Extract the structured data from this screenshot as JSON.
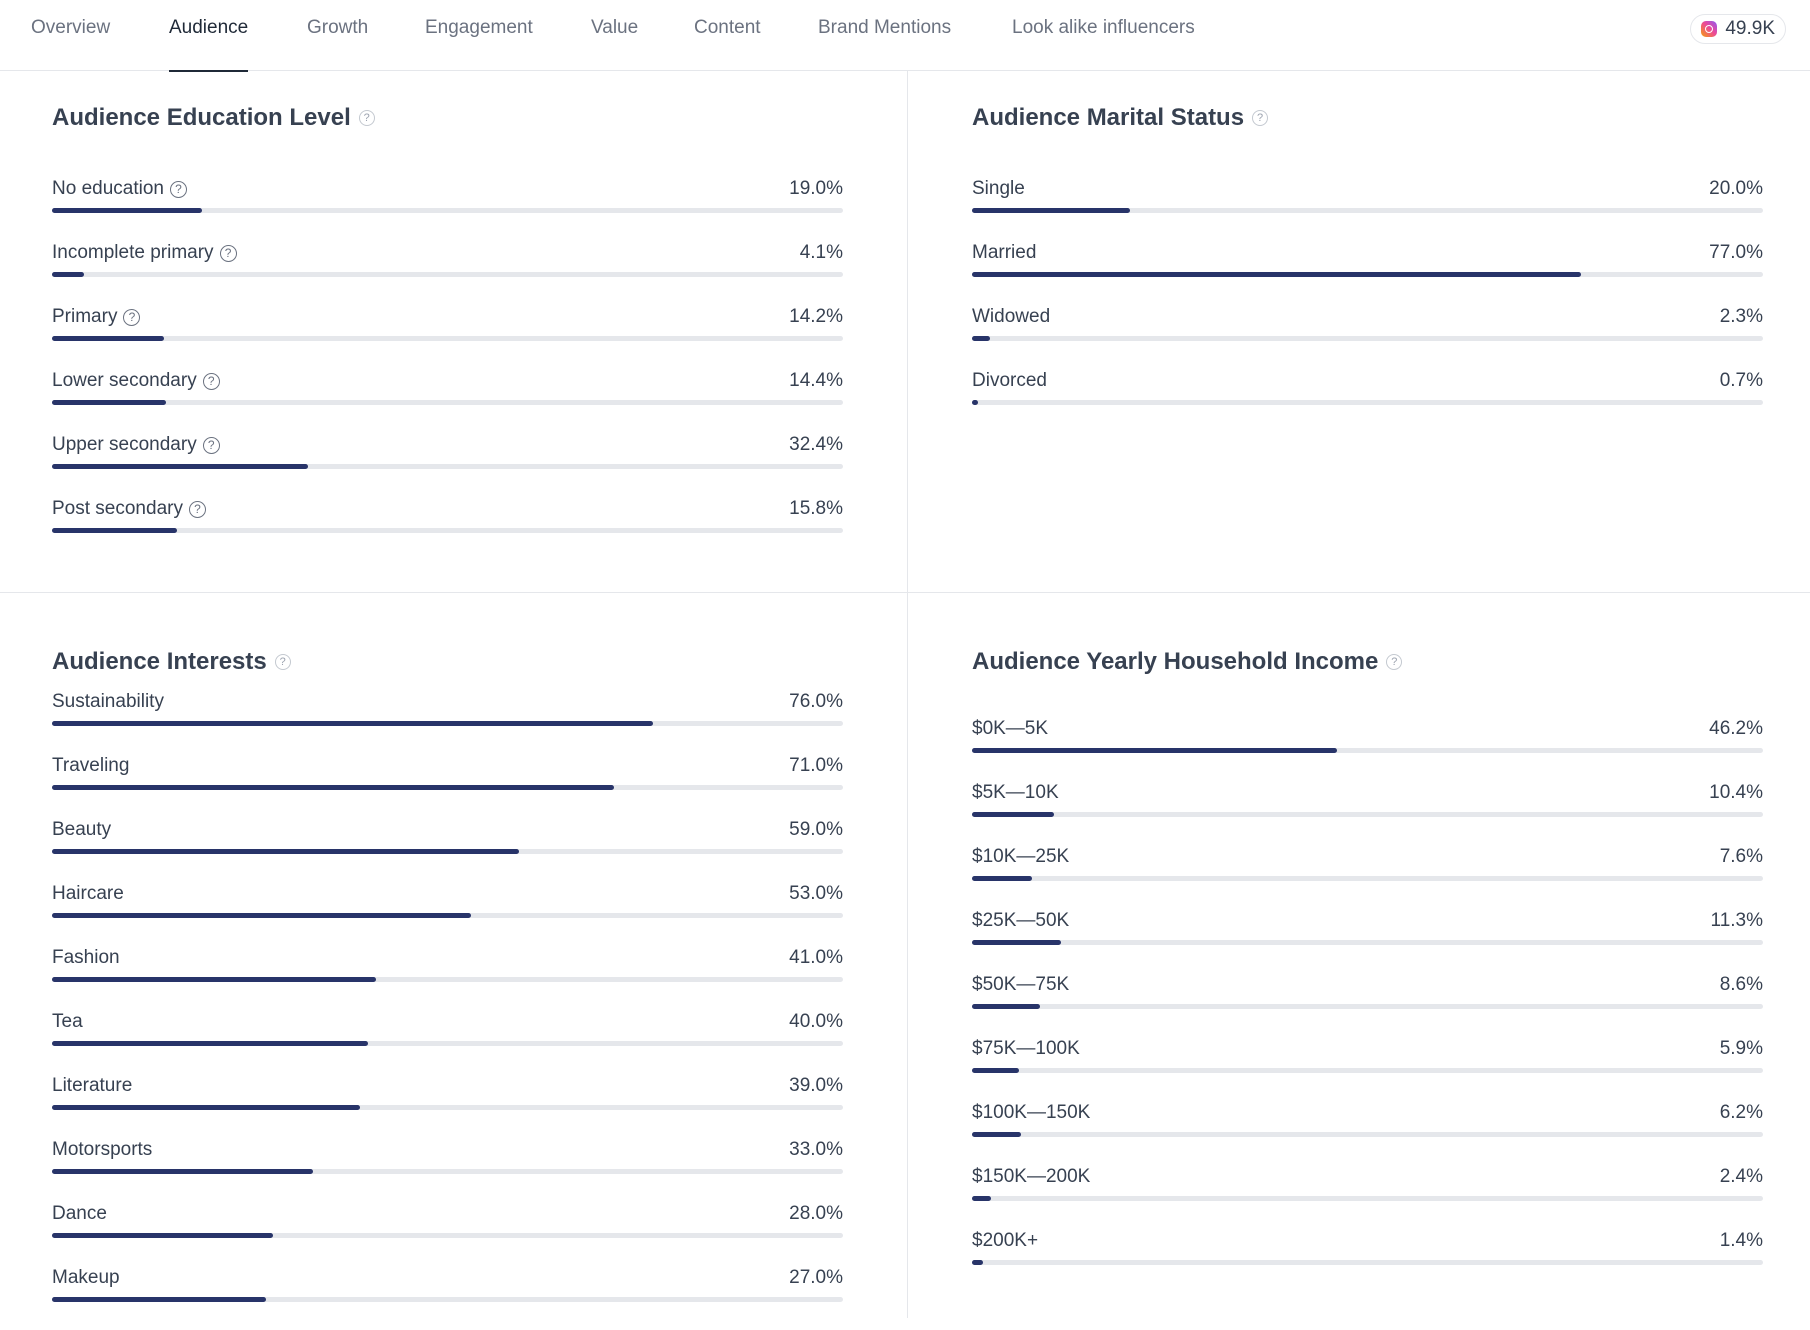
{
  "tabs": [
    {
      "label": "Overview",
      "active": false
    },
    {
      "label": "Audience",
      "active": true
    },
    {
      "label": "Growth",
      "active": false
    },
    {
      "label": "Engagement",
      "active": false
    },
    {
      "label": "Value",
      "active": false
    },
    {
      "label": "Content",
      "active": false
    },
    {
      "label": "Brand Mentions",
      "active": false
    },
    {
      "label": "Look alike influencers",
      "active": false
    }
  ],
  "followers": {
    "icon": "instagram-icon",
    "value": "49.9K"
  },
  "colors": {
    "bar_fill": "#283469",
    "bar_track": "#e5e7eb",
    "text": "#374151",
    "muted": "#6b7280"
  },
  "education": {
    "title": "Audience Education Level",
    "items": [
      {
        "label": "No education",
        "value": "19.0%",
        "percent": 19.0
      },
      {
        "label": "Incomplete primary",
        "value": "4.1%",
        "percent": 4.1
      },
      {
        "label": "Primary",
        "value": "14.2%",
        "percent": 14.2
      },
      {
        "label": "Lower secondary",
        "value": "14.4%",
        "percent": 14.4
      },
      {
        "label": "Upper secondary",
        "value": "32.4%",
        "percent": 32.4
      },
      {
        "label": "Post secondary",
        "value": "15.8%",
        "percent": 15.8
      }
    ]
  },
  "marital": {
    "title": "Audience Marital Status",
    "items": [
      {
        "label": "Single",
        "value": "20.0%",
        "percent": 20.0
      },
      {
        "label": "Married",
        "value": "77.0%",
        "percent": 77.0
      },
      {
        "label": "Widowed",
        "value": "2.3%",
        "percent": 2.3
      },
      {
        "label": "Divorced",
        "value": "0.7%",
        "percent": 0.7
      }
    ]
  },
  "interests": {
    "title": "Audience Interests",
    "items": [
      {
        "label": "Sustainability",
        "value": "76.0%",
        "percent": 76.0
      },
      {
        "label": "Traveling",
        "value": "71.0%",
        "percent": 71.0
      },
      {
        "label": "Beauty",
        "value": "59.0%",
        "percent": 59.0
      },
      {
        "label": "Haircare",
        "value": "53.0%",
        "percent": 53.0
      },
      {
        "label": "Fashion",
        "value": "41.0%",
        "percent": 41.0
      },
      {
        "label": "Tea",
        "value": "40.0%",
        "percent": 40.0
      },
      {
        "label": "Literature",
        "value": "39.0%",
        "percent": 39.0
      },
      {
        "label": "Motorsports",
        "value": "33.0%",
        "percent": 33.0
      },
      {
        "label": "Dance",
        "value": "28.0%",
        "percent": 28.0
      },
      {
        "label": "Makeup",
        "value": "27.0%",
        "percent": 27.0
      }
    ]
  },
  "income": {
    "title": "Audience Yearly Household Income",
    "items": [
      {
        "label": "$0K—5K",
        "value": "46.2%",
        "percent": 46.2
      },
      {
        "label": "$5K—10K",
        "value": "10.4%",
        "percent": 10.4
      },
      {
        "label": "$10K—25K",
        "value": "7.6%",
        "percent": 7.6
      },
      {
        "label": "$25K—50K",
        "value": "11.3%",
        "percent": 11.3
      },
      {
        "label": "$50K—75K",
        "value": "8.6%",
        "percent": 8.6
      },
      {
        "label": "$75K—100K",
        "value": "5.9%",
        "percent": 5.9
      },
      {
        "label": "$100K—150K",
        "value": "6.2%",
        "percent": 6.2
      },
      {
        "label": "$150K—200K",
        "value": "2.4%",
        "percent": 2.4
      },
      {
        "label": "$200K+",
        "value": "1.4%",
        "percent": 1.4
      }
    ]
  }
}
